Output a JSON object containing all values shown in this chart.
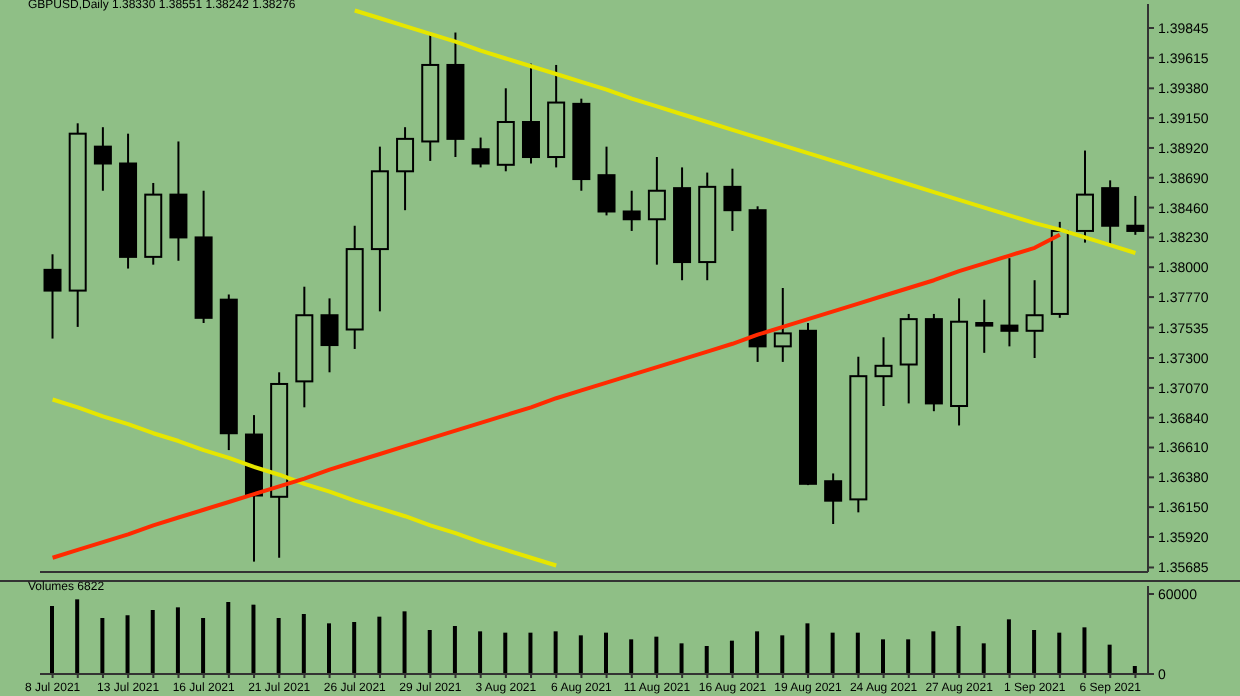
{
  "chart_data": [
    {
      "type": "candlestick",
      "title": "GBPUSD,Daily 1.38330 1.38551 1.38242 1.38276",
      "ohlc": [
        [
          1.3798,
          1.381,
          1.3745,
          1.3782
        ],
        [
          1.3782,
          1.3911,
          1.3754,
          1.3903
        ],
        [
          1.3893,
          1.3908,
          1.3859,
          1.388
        ],
        [
          1.388,
          1.3903,
          1.3799,
          1.3808
        ],
        [
          1.3808,
          1.3865,
          1.3802,
          1.3856
        ],
        [
          1.3856,
          1.3897,
          1.3805,
          1.3823
        ],
        [
          1.3823,
          1.3859,
          1.3757,
          1.3761
        ],
        [
          1.3775,
          1.3779,
          1.3659,
          1.3672
        ],
        [
          1.3671,
          1.3686,
          1.3573,
          1.3624
        ],
        [
          1.3623,
          1.3719,
          1.3576,
          1.371
        ],
        [
          1.3712,
          1.3785,
          1.3692,
          1.3763
        ],
        [
          1.3763,
          1.3776,
          1.3719,
          1.374
        ],
        [
          1.3752,
          1.3832,
          1.3737,
          1.3814
        ],
        [
          1.3814,
          1.3893,
          1.3766,
          1.3874
        ],
        [
          1.3874,
          1.3908,
          1.3844,
          1.3899
        ],
        [
          1.3897,
          1.398,
          1.3882,
          1.3956
        ],
        [
          1.3956,
          1.3981,
          1.3885,
          1.3899
        ],
        [
          1.3891,
          1.39,
          1.3877,
          1.388
        ],
        [
          1.3879,
          1.3938,
          1.3874,
          1.3912
        ],
        [
          1.3912,
          1.3957,
          1.388,
          1.3885
        ],
        [
          1.3885,
          1.3956,
          1.3877,
          1.3927
        ],
        [
          1.3926,
          1.393,
          1.3859,
          1.3868
        ],
        [
          1.3871,
          1.3893,
          1.384,
          1.3843
        ],
        [
          1.3843,
          1.3859,
          1.3828,
          1.3837
        ],
        [
          1.3837,
          1.3885,
          1.3802,
          1.3859
        ],
        [
          1.3861,
          1.3877,
          1.379,
          1.3804
        ],
        [
          1.3804,
          1.3873,
          1.379,
          1.3862
        ],
        [
          1.3862,
          1.3876,
          1.3828,
          1.3844
        ],
        [
          1.3844,
          1.3847,
          1.3727,
          1.3739
        ],
        [
          1.3739,
          1.3784,
          1.3727,
          1.3749
        ],
        [
          1.3751,
          1.3757,
          1.3632,
          1.3633
        ],
        [
          1.3635,
          1.3641,
          1.3602,
          1.362
        ],
        [
          1.3621,
          1.3731,
          1.3611,
          1.3716
        ],
        [
          1.3716,
          1.3746,
          1.3693,
          1.3724
        ],
        [
          1.3725,
          1.3764,
          1.3695,
          1.376
        ],
        [
          1.376,
          1.3764,
          1.3689,
          1.3695
        ],
        [
          1.3693,
          1.3776,
          1.3678,
          1.3758
        ],
        [
          1.3757,
          1.3775,
          1.3734,
          1.3755
        ],
        [
          1.3755,
          1.3807,
          1.3739,
          1.3751
        ],
        [
          1.3751,
          1.379,
          1.373,
          1.3763
        ],
        [
          1.3764,
          1.3835,
          1.3761,
          1.3828
        ],
        [
          1.3828,
          1.389,
          1.3819,
          1.3856
        ],
        [
          1.3861,
          1.3867,
          1.3817,
          1.3832
        ],
        [
          1.3832,
          1.3855,
          1.3825,
          1.3828
        ]
      ],
      "series": [
        {
          "type": "line",
          "color": "#e6e600",
          "values": [
            null,
            null,
            null,
            null,
            null,
            null,
            null,
            null,
            null,
            null,
            null,
            null,
            1.3998,
            1.3992,
            1.3986,
            1.398,
            1.3974,
            1.3967,
            1.3961,
            1.3955,
            1.3949,
            1.3943,
            1.3937,
            1.393,
            1.3924,
            1.3918,
            1.3912,
            1.3906,
            1.39,
            1.3894,
            1.3888,
            1.3882,
            1.3876,
            1.387,
            1.3864,
            1.3858,
            1.3852,
            1.3846,
            1.384,
            1.3834,
            1.3829,
            1.3823,
            1.3817,
            1.3811
          ]
        },
        {
          "type": "line",
          "color": "#e6e600",
          "values": [
            1.3698,
            1.3692,
            1.3685,
            1.3679,
            1.3672,
            1.3666,
            1.3659,
            1.3653,
            1.3646,
            1.364,
            1.3633,
            1.3627,
            1.362,
            1.3614,
            1.3608,
            1.3601,
            1.3595,
            1.3588,
            1.3582,
            1.3576,
            1.357,
            null,
            null,
            null,
            null,
            null,
            null,
            null,
            null,
            null,
            null,
            null,
            null,
            null,
            null,
            null,
            null,
            null,
            null,
            null,
            null,
            null,
            null,
            null
          ]
        },
        {
          "type": "line",
          "color": "#ff2a00",
          "values": [
            1.3576,
            1.3582,
            1.3588,
            1.3594,
            1.3601,
            1.3607,
            1.3613,
            1.3619,
            1.3625,
            1.3631,
            1.3637,
            1.3644,
            1.365,
            1.3656,
            1.3662,
            1.3668,
            1.3674,
            1.368,
            1.3686,
            1.3692,
            1.3699,
            1.3705,
            1.3711,
            1.3717,
            1.3723,
            1.3729,
            1.3735,
            1.3741,
            1.3748,
            1.3754,
            1.376,
            1.3766,
            1.3772,
            1.3778,
            1.3784,
            1.379,
            1.3797,
            1.3803,
            1.3809,
            1.3815,
            1.3825,
            null,
            null,
            null
          ]
        }
      ],
      "ylim": [
        1.3565,
        1.4003
      ],
      "yticks": [
        {
          "value": 1.39845,
          "label": "1.39845"
        },
        {
          "value": 1.39615,
          "label": "1.39615"
        },
        {
          "value": 1.3938,
          "label": "1.39380"
        },
        {
          "value": 1.3915,
          "label": "1.39150"
        },
        {
          "value": 1.3892,
          "label": "1.38920"
        },
        {
          "value": 1.3869,
          "label": "1.38690"
        },
        {
          "value": 1.3846,
          "label": "1.38460"
        },
        {
          "value": 1.3823,
          "label": "1.38230"
        },
        {
          "value": 1.38,
          "label": "1.38000"
        },
        {
          "value": 1.3777,
          "label": "1.37770"
        },
        {
          "value": 1.37535,
          "label": "1.37535"
        },
        {
          "value": 1.373,
          "label": "1.37300"
        },
        {
          "value": 1.3707,
          "label": "1.37070"
        },
        {
          "value": 1.3684,
          "label": "1.36840"
        },
        {
          "value": 1.3661,
          "label": "1.36610"
        },
        {
          "value": 1.3638,
          "label": "1.36380"
        },
        {
          "value": 1.3615,
          "label": "1.36150"
        },
        {
          "value": 1.3592,
          "label": "1.35920"
        },
        {
          "value": 1.35685,
          "label": "1.35685"
        }
      ],
      "tick_labels": "y"
    },
    {
      "type": "bar",
      "title": "Volumes 6822",
      "color": "#000000",
      "categories": [
        "8 Jul 2021",
        null,
        null,
        "13 Jul 2021",
        null,
        null,
        "16 Jul 2021",
        null,
        null,
        "21 Jul 2021",
        null,
        null,
        "26 Jul 2021",
        null,
        null,
        "29 Jul 2021",
        null,
        null,
        "3 Aug 2021",
        null,
        null,
        "6 Aug 2021",
        null,
        null,
        "11 Aug 2021",
        null,
        null,
        "16 Aug 2021",
        null,
        null,
        "19 Aug 2021",
        null,
        null,
        "24 Aug 2021",
        null,
        null,
        "27 Aug 2021",
        null,
        null,
        "1 Sep 2021",
        null,
        null,
        "6 Sep 2021",
        null
      ],
      "values": [
        51000,
        56000,
        42000,
        44000,
        48000,
        50000,
        42000,
        54000,
        52000,
        42000,
        45000,
        38000,
        39000,
        43000,
        47000,
        33000,
        36000,
        32000,
        31000,
        31000,
        32000,
        29000,
        31000,
        26000,
        28000,
        23000,
        21000,
        25000,
        32000,
        29000,
        38000,
        31000,
        31000,
        26000,
        26000,
        32000,
        36000,
        23000,
        41000,
        33000,
        31000,
        35000,
        22000,
        6000
      ],
      "ylim": [
        0,
        66000
      ],
      "yticks": [
        0,
        60000
      ]
    }
  ]
}
